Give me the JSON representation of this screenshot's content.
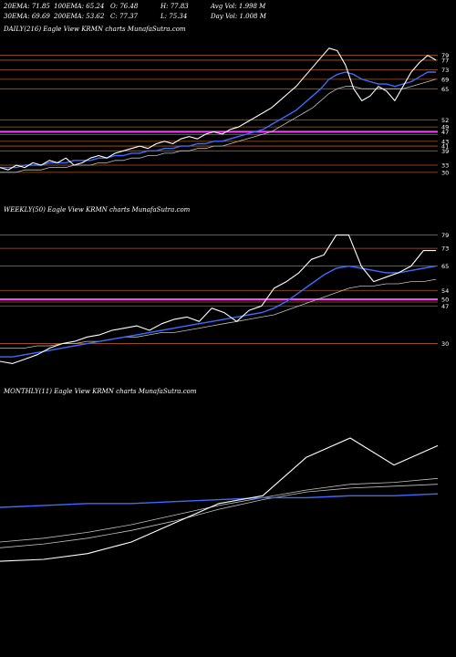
{
  "header": {
    "rows": [
      [
        {
          "label": "20EMA:",
          "value": "71.85"
        },
        {
          "label": "100EMA:",
          "value": "65.24"
        },
        {
          "label": "O:",
          "value": "76.48"
        },
        {
          "label": "H:",
          "value": "77.83"
        },
        {
          "label": "Avg Vol:",
          "value": "1.998  M"
        }
      ],
      [
        {
          "label": "30EMA:",
          "value": "69.69"
        },
        {
          "label": "200EMA:",
          "value": "53.62"
        },
        {
          "label": "C:",
          "value": "77.37"
        },
        {
          "label": "L:",
          "value": "75.34"
        },
        {
          "label": "Day Vol:",
          "value": "1.008  M"
        }
      ]
    ]
  },
  "colors": {
    "price": "#ffffff",
    "ema_fast": "#3b6cff",
    "ema_slow": "#c0c0c0",
    "level": "#b05a1a",
    "highlight": "#ff40ff"
  },
  "chart_data": [
    {
      "type": "line",
      "title": "DAILY(216) Eagle   View  KRMN  charts MunafaSutra.com",
      "ylim": [
        20,
        85
      ],
      "yticks": [
        "79",
        "77",
        "73",
        "69",
        "65",
        "52",
        "49",
        "47",
        "43",
        "41",
        "39",
        "33",
        "30"
      ],
      "tick_values": [
        79,
        77,
        73,
        69,
        65,
        52,
        49,
        47,
        43,
        41,
        39,
        33,
        30
      ],
      "levels": [
        79,
        77,
        73,
        69,
        65,
        52,
        49,
        47,
        43,
        41,
        39,
        33,
        30
      ],
      "highlight_level": 47,
      "series": [
        {
          "role": "price",
          "values": [
            32,
            31,
            33,
            32,
            34,
            33,
            35,
            34,
            36,
            33,
            34,
            36,
            37,
            36,
            38,
            39,
            40,
            41,
            40,
            42,
            43,
            42,
            44,
            45,
            44,
            46,
            47,
            46,
            48,
            49,
            51,
            53,
            55,
            57,
            60,
            63,
            66,
            70,
            74,
            78,
            82,
            81,
            75,
            65,
            60,
            62,
            66,
            64,
            60,
            66,
            72,
            76,
            79,
            77
          ]
        },
        {
          "role": "ema_fast",
          "values": [
            32,
            32,
            32,
            33,
            33,
            33,
            34,
            34,
            34,
            35,
            35,
            35,
            36,
            36,
            37,
            37,
            38,
            38,
            39,
            39,
            40,
            40,
            41,
            41,
            42,
            42,
            43,
            43,
            44,
            45,
            46,
            47,
            48,
            50,
            52,
            54,
            56,
            59,
            62,
            65,
            69,
            71,
            72,
            71,
            69,
            68,
            67,
            67,
            66,
            67,
            68,
            70,
            72,
            72
          ]
        },
        {
          "role": "ema_slow",
          "values": [
            30,
            30,
            30,
            31,
            31,
            31,
            32,
            32,
            32,
            33,
            33,
            33,
            34,
            34,
            35,
            35,
            36,
            36,
            37,
            37,
            38,
            38,
            39,
            39,
            40,
            40,
            41,
            41,
            42,
            43,
            44,
            45,
            46,
            47,
            49,
            51,
            53,
            55,
            57,
            60,
            63,
            65,
            66,
            66,
            65,
            65,
            65,
            65,
            65,
            65,
            66,
            67,
            68,
            69
          ]
        }
      ]
    },
    {
      "type": "line",
      "title": "WEEKLY(50) Eagle   View  KRMN  charts MunafaSutra.com",
      "ylim": [
        15,
        85
      ],
      "yticks": [
        "79",
        "73",
        "65",
        "54",
        "50",
        "47",
        "30"
      ],
      "tick_values": [
        79,
        73,
        65,
        54,
        50,
        47,
        30
      ],
      "levels": [
        79,
        73,
        65,
        54,
        50,
        47,
        30
      ],
      "highlight_level": 50,
      "series": [
        {
          "role": "price",
          "values": [
            22,
            21,
            23,
            25,
            28,
            30,
            31,
            33,
            34,
            36,
            37,
            38,
            36,
            39,
            41,
            42,
            40,
            46,
            44,
            40,
            45,
            47,
            55,
            58,
            62,
            68,
            70,
            79,
            79,
            65,
            58,
            60,
            62,
            65,
            72,
            72
          ]
        },
        {
          "role": "ema_fast",
          "values": [
            24,
            24,
            25,
            26,
            27,
            28,
            29,
            30,
            31,
            32,
            33,
            34,
            35,
            36,
            37,
            38,
            39,
            40,
            41,
            42,
            43,
            44,
            46,
            49,
            53,
            57,
            61,
            64,
            65,
            64,
            63,
            62,
            62,
            63,
            64,
            65
          ]
        },
        {
          "role": "ema_slow",
          "values": [
            28,
            28,
            28,
            29,
            29,
            30,
            30,
            31,
            31,
            32,
            33,
            33,
            34,
            35,
            35,
            36,
            37,
            38,
            39,
            40,
            41,
            42,
            43,
            45,
            47,
            49,
            51,
            53,
            55,
            56,
            56,
            57,
            57,
            58,
            58,
            59
          ]
        }
      ]
    },
    {
      "type": "line",
      "title": "MONTHLY(11) Eagle   View  KRMN  charts MunafaSutra.com",
      "ylim": [
        0,
        90
      ],
      "yticks": [],
      "tick_values": [],
      "levels": [],
      "highlight_level": null,
      "series": [
        {
          "role": "price",
          "values": [
            8,
            9,
            12,
            18,
            28,
            38,
            42,
            62,
            72,
            58,
            68
          ]
        },
        {
          "role": "ema_fast",
          "values": [
            36,
            37,
            38,
            38,
            39,
            40,
            41,
            41,
            42,
            42,
            43
          ]
        },
        {
          "role": "ema_slow",
          "values": [
            18,
            20,
            23,
            27,
            32,
            37,
            41,
            45,
            48,
            49,
            51
          ]
        },
        {
          "role": "ema_slow",
          "values": [
            15,
            17,
            20,
            24,
            29,
            35,
            40,
            44,
            46,
            47,
            48
          ]
        }
      ]
    }
  ]
}
